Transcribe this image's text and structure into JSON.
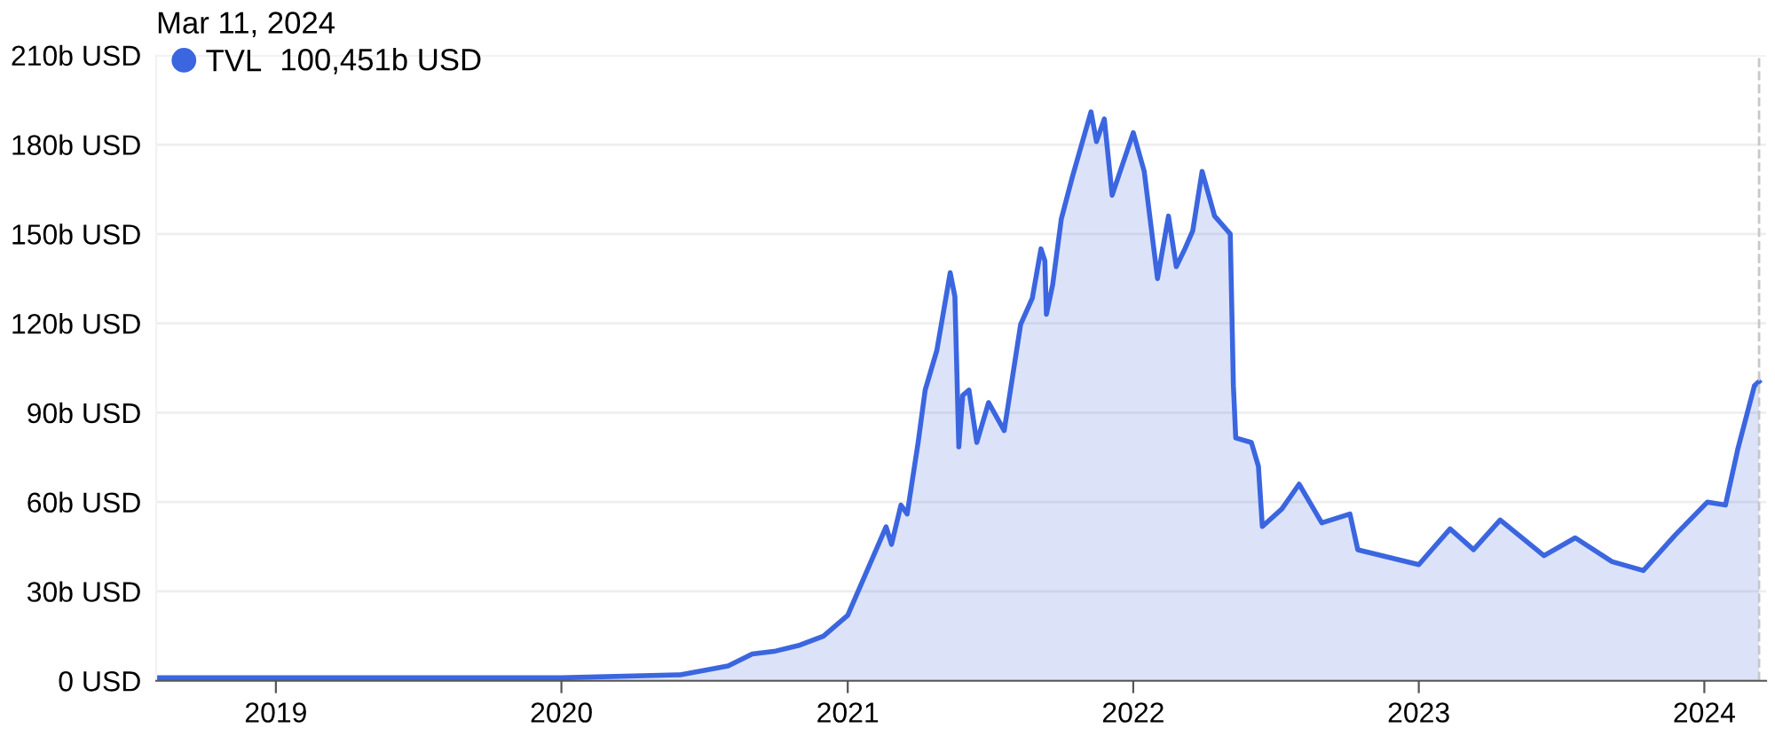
{
  "chart_data": {
    "type": "area",
    "x": [
      "2018-08-01",
      "2019-01-01",
      "2020-01-01",
      "2020-06-01",
      "2020-08-01",
      "2020-09-01",
      "2020-10-01",
      "2020-11-01",
      "2020-12-01",
      "2021-01-01",
      "2021-02-19",
      "2021-02-26",
      "2021-03-10",
      "2021-03-18",
      "2021-04-01",
      "2021-04-10",
      "2021-04-25",
      "2021-05-12",
      "2021-05-18",
      "2021-05-23",
      "2021-05-28",
      "2021-06-05",
      "2021-06-15",
      "2021-06-30",
      "2021-07-20",
      "2021-08-10",
      "2021-08-25",
      "2021-09-05",
      "2021-09-10",
      "2021-09-12",
      "2021-09-20",
      "2021-10-01",
      "2021-10-15",
      "2021-11-08",
      "2021-11-15",
      "2021-11-25",
      "2021-12-05",
      "2022-01-01",
      "2022-01-15",
      "2022-02-01",
      "2022-02-15",
      "2022-02-25",
      "2022-03-08",
      "2022-03-18",
      "2022-03-30",
      "2022-04-15",
      "2022-05-05",
      "2022-05-09",
      "2022-05-12",
      "2022-06-01",
      "2022-06-10",
      "2022-06-15",
      "2022-07-10",
      "2022-08-01",
      "2022-08-30",
      "2022-10-05",
      "2022-10-15",
      "2023-01-01",
      "2023-02-10",
      "2023-03-12",
      "2023-04-15",
      "2023-06-10",
      "2023-07-20",
      "2023-09-05",
      "2023-10-15",
      "2023-11-25",
      "2024-01-05",
      "2024-01-28",
      "2024-02-13",
      "2024-03-05",
      "2024-03-11"
    ],
    "series": [
      {
        "name": "TVL",
        "color": "#3b66e0",
        "values": [
          1,
          1,
          1,
          2,
          5,
          9,
          10,
          12,
          15,
          22,
          51.7,
          45.8,
          59,
          56,
          80,
          97.6,
          111,
          137,
          129,
          78.5,
          95.8,
          97.6,
          80,
          93.4,
          84,
          119.6,
          128.5,
          145,
          141,
          123,
          133,
          155,
          169,
          191,
          181,
          188.6,
          163,
          184,
          171,
          135,
          156,
          139,
          145,
          151,
          171,
          156,
          150,
          99,
          81.5,
          80,
          72,
          51.8,
          57.7,
          66,
          53,
          56,
          44,
          39,
          51,
          44,
          54,
          42,
          48,
          40,
          37,
          49,
          60,
          59,
          78,
          99,
          100.451
        ]
      }
    ],
    "xlim": [
      "2018-08-01",
      "2024-03-20"
    ],
    "xticks": [
      {
        "value": "2019-01-01",
        "label": "2019"
      },
      {
        "value": "2020-01-01",
        "label": "2020"
      },
      {
        "value": "2021-01-01",
        "label": "2021"
      },
      {
        "value": "2022-01-01",
        "label": "2022"
      },
      {
        "value": "2023-01-01",
        "label": "2023"
      },
      {
        "value": "2024-01-01",
        "label": "2024"
      }
    ],
    "ylim": [
      0,
      210
    ],
    "yticks": [
      {
        "value": 0,
        "label": "0 USD"
      },
      {
        "value": 30,
        "label": "30b USD"
      },
      {
        "value": 60,
        "label": "60b USD"
      },
      {
        "value": 90,
        "label": "90b USD"
      },
      {
        "value": 120,
        "label": "120b USD"
      },
      {
        "value": 150,
        "label": "150b USD"
      },
      {
        "value": 180,
        "label": "180b USD"
      },
      {
        "value": 210,
        "label": "210b USD"
      }
    ],
    "grid": "y",
    "legend": "top left",
    "ref_lines": [
      {
        "axis": "x",
        "value": "2024-03-11",
        "color": "#c8c8c8",
        "line_style": "dashed"
      }
    ],
    "annotations": [
      "Mar 11, 2024",
      "100,451b USD"
    ]
  }
}
